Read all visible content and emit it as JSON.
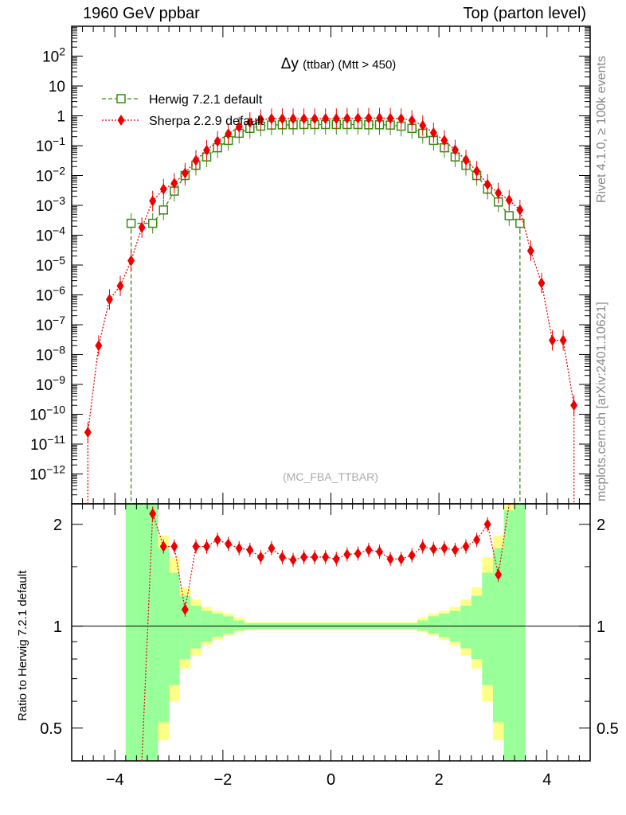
{
  "header": {
    "left": "1960 GeV ppbar",
    "right": "Top (parton level)"
  },
  "side_labels": {
    "rivet": "Rivet 4.1.0, ≥ 100k events",
    "mcplots": "mcplots.cern.ch [arXiv:2401.10621]"
  },
  "chart_data": {
    "type": "line",
    "title": "Δy",
    "title_suffix": "(ttbar) (Mtt > 450)",
    "watermark": "(MC_FBA_TTBAR)",
    "xlabel": "",
    "xlim": [
      -4.8,
      4.8
    ],
    "x_ticks": [
      -4,
      -2,
      0,
      2,
      4
    ],
    "x_tick_labels": [
      "−4",
      "−2",
      "0",
      "2",
      "4"
    ],
    "main_ylim": [
      1e-13,
      1000
    ],
    "main_y_ticks": [
      {
        "v": 1e-12,
        "b": "10",
        "e": "−12"
      },
      {
        "v": 1e-11,
        "b": "10",
        "e": "−11"
      },
      {
        "v": 1e-10,
        "b": "10",
        "e": "−10"
      },
      {
        "v": 1e-09,
        "b": "10",
        "e": "−9"
      },
      {
        "v": 1e-08,
        "b": "10",
        "e": "−8"
      },
      {
        "v": 1e-07,
        "b": "10",
        "e": "−7"
      },
      {
        "v": 1e-06,
        "b": "10",
        "e": "−6"
      },
      {
        "v": 1e-05,
        "b": "10",
        "e": "−5"
      },
      {
        "v": 0.0001,
        "b": "10",
        "e": "−4"
      },
      {
        "v": 0.001,
        "b": "10",
        "e": "−3"
      },
      {
        "v": 0.01,
        "b": "10",
        "e": "−2"
      },
      {
        "v": 0.1,
        "b": "10",
        "e": "−1"
      },
      {
        "v": 1,
        "b": "1",
        "e": ""
      },
      {
        "v": 10,
        "b": "10",
        "e": ""
      },
      {
        "v": 100,
        "b": "10",
        "e": "2"
      }
    ],
    "ratio_ylabel": "Ratio to Herwig 7.2.1 default",
    "ratio_ylim": [
      0.4,
      2.3
    ],
    "ratio_ticks": [
      {
        "v": 0.5,
        "label": "0.5"
      },
      {
        "v": 1,
        "label": "1"
      },
      {
        "v": 2,
        "label": "2"
      }
    ],
    "series": [
      {
        "name": "Herwig 7.2.1 default",
        "color": "#3a8a14",
        "marker": "open-square",
        "line": "dashed",
        "points": [
          [
            -3.7,
            0.00025
          ],
          [
            -3.3,
            0.00025
          ],
          [
            -3.1,
            0.0007
          ],
          [
            -2.9,
            0.003
          ],
          [
            -2.7,
            0.01
          ],
          [
            -2.5,
            0.022
          ],
          [
            -2.3,
            0.042
          ],
          [
            -2.1,
            0.085
          ],
          [
            -1.9,
            0.15
          ],
          [
            -1.7,
            0.26
          ],
          [
            -1.5,
            0.38
          ],
          [
            -1.3,
            0.45
          ],
          [
            -1.1,
            0.49
          ],
          [
            -0.9,
            0.5
          ],
          [
            -0.7,
            0.5
          ],
          [
            -0.5,
            0.51
          ],
          [
            -0.3,
            0.51
          ],
          [
            -0.1,
            0.51
          ],
          [
            0.1,
            0.51
          ],
          [
            0.3,
            0.51
          ],
          [
            0.5,
            0.51
          ],
          [
            0.7,
            0.5
          ],
          [
            0.9,
            0.5
          ],
          [
            1.1,
            0.49
          ],
          [
            1.3,
            0.45
          ],
          [
            1.5,
            0.38
          ],
          [
            1.7,
            0.26
          ],
          [
            1.9,
            0.15
          ],
          [
            2.1,
            0.085
          ],
          [
            2.3,
            0.042
          ],
          [
            2.5,
            0.022
          ],
          [
            2.7,
            0.01
          ],
          [
            2.9,
            0.0035
          ],
          [
            3.1,
            0.0013
          ],
          [
            3.3,
            0.00045
          ],
          [
            3.5,
            0.00025
          ]
        ]
      },
      {
        "name": "Sherpa 2.2.9 default",
        "color": "#ee0000",
        "marker": "diamond",
        "line": "dotted",
        "points": [
          [
            -4.5,
            2.5e-11
          ],
          [
            -4.3,
            2e-08
          ],
          [
            -4.1,
            7e-07
          ],
          [
            -3.9,
            2e-06
          ],
          [
            -3.7,
            1.4e-05
          ],
          [
            -3.5,
            0.00018
          ],
          [
            -3.3,
            0.0014
          ],
          [
            -3.1,
            0.0035
          ],
          [
            -2.9,
            0.0055
          ],
          [
            -2.7,
            0.012
          ],
          [
            -2.5,
            0.032
          ],
          [
            -2.3,
            0.07
          ],
          [
            -2.1,
            0.14
          ],
          [
            -1.9,
            0.25
          ],
          [
            -1.7,
            0.42
          ],
          [
            -1.5,
            0.6
          ],
          [
            -1.3,
            0.75
          ],
          [
            -1.1,
            0.8
          ],
          [
            -0.9,
            0.8
          ],
          [
            -0.7,
            0.8
          ],
          [
            -0.5,
            0.8
          ],
          [
            -0.3,
            0.8
          ],
          [
            -0.1,
            0.8
          ],
          [
            0.1,
            0.8
          ],
          [
            0.3,
            0.82
          ],
          [
            0.5,
            0.83
          ],
          [
            0.7,
            0.84
          ],
          [
            0.9,
            0.84
          ],
          [
            1.1,
            0.82
          ],
          [
            1.3,
            0.8
          ],
          [
            1.5,
            0.7
          ],
          [
            1.7,
            0.47
          ],
          [
            1.9,
            0.27
          ],
          [
            2.1,
            0.15
          ],
          [
            2.3,
            0.072
          ],
          [
            2.5,
            0.033
          ],
          [
            2.7,
            0.014
          ],
          [
            2.9,
            0.005
          ],
          [
            3.1,
            0.0026
          ],
          [
            3.3,
            0.0015
          ],
          [
            3.5,
            0.0007
          ],
          [
            3.7,
            3e-05
          ],
          [
            3.9,
            2.5e-06
          ],
          [
            4.1,
            3e-08
          ],
          [
            4.3,
            3e-08
          ],
          [
            4.5,
            2e-10
          ]
        ]
      }
    ],
    "ratio_points": [
      [
        -3.3,
        2.15
      ],
      [
        -3.1,
        1.72
      ],
      [
        -2.9,
        1.72
      ],
      [
        -2.7,
        1.12
      ],
      [
        -2.5,
        1.72
      ],
      [
        -2.3,
        1.72
      ],
      [
        -2.1,
        1.8
      ],
      [
        -1.9,
        1.75
      ],
      [
        -1.7,
        1.7
      ],
      [
        -1.5,
        1.68
      ],
      [
        -1.3,
        1.6
      ],
      [
        -1.1,
        1.7
      ],
      [
        -0.9,
        1.6
      ],
      [
        -0.7,
        1.57
      ],
      [
        -0.5,
        1.6
      ],
      [
        -0.3,
        1.6
      ],
      [
        -0.1,
        1.6
      ],
      [
        0.1,
        1.58
      ],
      [
        0.3,
        1.63
      ],
      [
        0.5,
        1.64
      ],
      [
        0.7,
        1.68
      ],
      [
        0.9,
        1.66
      ],
      [
        1.1,
        1.58
      ],
      [
        1.3,
        1.58
      ],
      [
        1.5,
        1.62
      ],
      [
        1.7,
        1.72
      ],
      [
        1.9,
        1.69
      ],
      [
        2.1,
        1.7
      ],
      [
        2.3,
        1.68
      ],
      [
        2.5,
        1.72
      ],
      [
        2.7,
        1.8
      ],
      [
        2.9,
        2.0
      ],
      [
        3.1,
        1.42
      ]
    ],
    "uncertainty_band_edges": [
      -3.8,
      -3.6,
      -3.4,
      -3.2,
      -3.0,
      -2.8,
      -2.6,
      -2.4,
      -2.2,
      -2.0,
      -1.8,
      -1.6,
      1.6,
      1.8,
      2.0,
      2.2,
      2.4,
      2.6,
      2.8,
      3.0,
      3.2,
      3.4,
      3.6
    ],
    "uncertainty_band_green": [
      [
        0.3,
        2.4
      ],
      [
        0.3,
        2.4
      ],
      [
        0.35,
        2.4
      ],
      [
        0.52,
        1.7
      ],
      [
        0.67,
        1.44
      ],
      [
        0.8,
        1.23
      ],
      [
        0.86,
        1.15
      ],
      [
        0.9,
        1.11
      ],
      [
        0.93,
        1.09
      ],
      [
        0.95,
        1.07
      ],
      [
        0.97,
        1.04
      ],
      [
        0.98,
        1.02
      ],
      [
        0.97,
        1.04
      ],
      [
        0.95,
        1.07
      ],
      [
        0.93,
        1.09
      ],
      [
        0.9,
        1.11
      ],
      [
        0.86,
        1.15
      ],
      [
        0.8,
        1.23
      ],
      [
        0.67,
        1.44
      ],
      [
        0.52,
        1.7
      ],
      [
        0.35,
        2.2
      ],
      [
        0.3,
        2.4
      ]
    ],
    "uncertainty_band_yellow": [
      [
        0.3,
        2.4
      ],
      [
        0.3,
        2.4
      ],
      [
        0.3,
        2.4
      ],
      [
        0.46,
        1.85
      ],
      [
        0.6,
        1.6
      ],
      [
        0.75,
        1.3
      ],
      [
        0.82,
        1.2
      ],
      [
        0.88,
        1.14
      ],
      [
        0.91,
        1.11
      ],
      [
        0.94,
        1.09
      ],
      [
        0.96,
        1.06
      ],
      [
        0.975,
        1.03
      ],
      [
        0.96,
        1.06
      ],
      [
        0.94,
        1.09
      ],
      [
        0.91,
        1.11
      ],
      [
        0.88,
        1.14
      ],
      [
        0.82,
        1.2
      ],
      [
        0.75,
        1.3
      ],
      [
        0.6,
        1.6
      ],
      [
        0.46,
        1.85
      ],
      [
        0.3,
        2.4
      ],
      [
        0.3,
        2.4
      ]
    ],
    "colors": {
      "band_green": "#99ff99",
      "band_yellow": "#ffff88"
    }
  }
}
